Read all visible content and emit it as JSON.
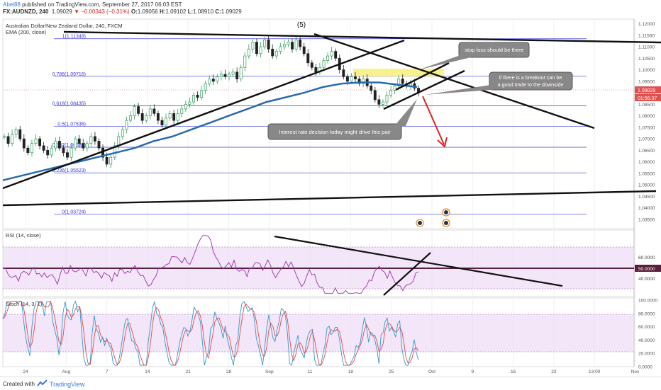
{
  "header": {
    "author": "Abel88",
    "published_text": "published on TradingView.com, September 27, 2017 06:03 EST",
    "symbol": "FX:AUDNZD, 240",
    "last": "1.09029",
    "change": "▼ −0.00343 (−0.31%)",
    "o_label": "O:",
    "o_value": "1.09056",
    "h_label": "H:",
    "h_value": "1.09102",
    "l_label": "L:",
    "l_value": "1.08910",
    "c_label": "C:",
    "c_value": "1.09029"
  },
  "main_legend": {
    "title": "Australian Dollar/New Zealand Dollar, 240, FXCM",
    "ema": "EMA (200, close)"
  },
  "rsi_legend": "RSI (14, close)",
  "stoch_legend": "Stoch (14, 3, 1)",
  "footer": {
    "created_with": "Created with",
    "brand": "TradingView"
  },
  "colors": {
    "candle_up": "#2e9e5b",
    "candle_down": "#222222",
    "ema": "#2a6bb0",
    "fib": "#3a3ad6",
    "rsi_line": "#9b30a8",
    "stoch_k": "#3399cc",
    "stoch_d": "#e0484c",
    "panel_fill": "#ebd6f5",
    "highlight": "#f7f07a",
    "arrow": "#dd2222"
  },
  "chart_data": {
    "type": "line",
    "title": "Australian Dollar/New Zealand Dollar, 240, FXCM",
    "y_ticks": [
      "1.12000",
      "1.11500",
      "1.11000",
      "1.10500",
      "1.10000",
      "1.09500",
      "1.09000",
      "1.08500",
      "1.08000",
      "1.07500",
      "1.07000",
      "1.06500",
      "1.06000",
      "1.05500",
      "1.05000",
      "1.04500",
      "1.04000",
      "1.03500"
    ],
    "ylim": [
      1.031,
      1.122
    ],
    "x_ticks": [
      "24",
      "Aug",
      "7",
      "14",
      "21",
      "28",
      "Sep",
      "11",
      "18",
      "25",
      "Oct",
      "9",
      "16",
      "23",
      "13:00",
      "Nov"
    ],
    "last_price": "1.09029",
    "countdown": "01:56:37",
    "wave_label": "(5)",
    "fib_levels": [
      {
        "label": "1(1.11348)",
        "value": 1.11348
      },
      {
        "label": "0.786(1.09716)",
        "value": 1.09716
      },
      {
        "label": "0.618(1.08435)",
        "value": 1.08435
      },
      {
        "label": "0.5(1.07536)",
        "value": 1.07536
      },
      {
        "label": "0.382(1.06636)",
        "value": 1.06636
      },
      {
        "label": "0.236(1.05523)",
        "value": 1.05523
      },
      {
        "label": "0(1.03724)",
        "value": 1.03724
      }
    ],
    "price_series": [
      1.071,
      1.068,
      1.072,
      1.074,
      1.07,
      1.066,
      1.064,
      1.068,
      1.07,
      1.067,
      1.065,
      1.063,
      1.066,
      1.069,
      1.066,
      1.064,
      1.062,
      1.066,
      1.07,
      1.068,
      1.066,
      1.068,
      1.071,
      1.069,
      1.066,
      1.062,
      1.059,
      1.062,
      1.067,
      1.071,
      1.074,
      1.078,
      1.08,
      1.084,
      1.081,
      1.078,
      1.08,
      1.083,
      1.081,
      1.078,
      1.076,
      1.079,
      1.081,
      1.078,
      1.081,
      1.083,
      1.085,
      1.086,
      1.089,
      1.088,
      1.091,
      1.094,
      1.096,
      1.095,
      1.097,
      1.098,
      1.097,
      1.098,
      1.099,
      1.096,
      1.101,
      1.106,
      1.109,
      1.112,
      1.107,
      1.11,
      1.113,
      1.109,
      1.106,
      1.108,
      1.11,
      1.111,
      1.112,
      1.109,
      1.113,
      1.11,
      1.107,
      1.103,
      1.101,
      1.099,
      1.101,
      1.104,
      1.106,
      1.108,
      1.105,
      1.1,
      1.097,
      1.095,
      1.097,
      1.096,
      1.094,
      1.096,
      1.093,
      1.091,
      1.087,
      1.085,
      1.086,
      1.089,
      1.091,
      1.093,
      1.096,
      1.094,
      1.093,
      1.094,
      1.092,
      1.09
    ],
    "ema_series": [
      1.052,
      1.054,
      1.056,
      1.058,
      1.06,
      1.062,
      1.064,
      1.066,
      1.069,
      1.071,
      1.074,
      1.077,
      1.08,
      1.083,
      1.086,
      1.088,
      1.09,
      1.0925,
      1.094,
      1.0945,
      1.0945,
      1.0935,
      1.0925
    ],
    "rsi": {
      "ylim": [
        30,
        90
      ],
      "levels": [
        70,
        30
      ],
      "ticks": [
        "60.0000",
        "40.0000"
      ],
      "last": "50.0000"
    },
    "stoch": {
      "ylim": [
        0,
        100
      ],
      "ticks": [
        "100.0000",
        "80.0000",
        "60.0000",
        "40.0000",
        "20.0000",
        "0.0000"
      ]
    }
  },
  "annotations": [
    {
      "name": "stop-loss-note",
      "text": "stop loss should be there"
    },
    {
      "name": "breakout-note",
      "text": "if there is a breakout can be a good trade to the downside"
    },
    {
      "name": "interest-rate-note",
      "text": "Interest rate decision today might drive this pair"
    }
  ]
}
